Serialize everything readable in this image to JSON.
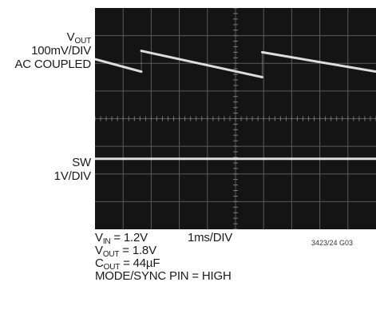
{
  "chart_data": {
    "type": "line",
    "title": "",
    "xlabel": "",
    "ylabel": "",
    "x_div": "1ms/DIV",
    "grid": true,
    "grid_divisions": {
      "x": 10,
      "y": 8
    },
    "series": [
      {
        "name": "VOUT",
        "label_lines": [
          "V",
          "OUT",
          "100mV/DIV",
          "AC COUPLED"
        ],
        "scale": "100mV/DIV",
        "coupling": "AC COUPLED",
        "color": "#e8e8e8",
        "points_div": [
          [
            0.0,
            1.85
          ],
          [
            1.65,
            2.3
          ],
          [
            1.65,
            1.55
          ],
          [
            5.95,
            2.5
          ],
          [
            5.95,
            1.6
          ],
          [
            10.0,
            2.3
          ]
        ]
      },
      {
        "name": "SW",
        "label_lines": [
          "SW",
          "1V/DIV"
        ],
        "scale": "1V/DIV",
        "color": "#e8e8e8",
        "points_div": [
          [
            0.0,
            5.45
          ],
          [
            10.0,
            5.45
          ]
        ]
      }
    ]
  },
  "labels": {
    "vout_v": "V",
    "vout_sub": "OUT",
    "vout_scale": "100mV/DIV",
    "vout_coupling": "AC COUPLED",
    "sw_name": "SW",
    "sw_scale": "1V/DIV"
  },
  "conditions": {
    "vin_v": "V",
    "vin_sub": "IN",
    "vin_value": " = 1.2V",
    "timebase": "1ms/DIV",
    "vout_v": "V",
    "vout_sub": "OUT",
    "vout_value": " = 1.8V",
    "cout_c": "C",
    "cout_sub": "OUT",
    "cout_value": " = 44µF",
    "mode": "MODE/SYNC PIN = HIGH"
  },
  "figure_id": "3423/24 G03"
}
